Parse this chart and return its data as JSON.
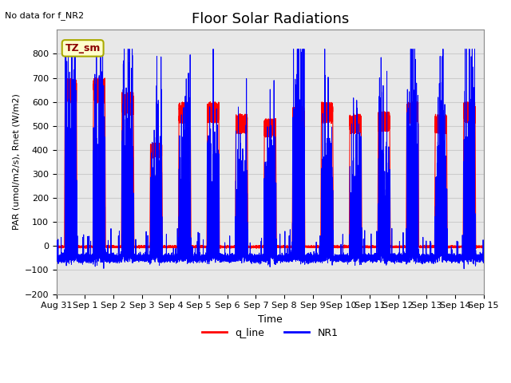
{
  "title": "Floor Solar Radiations",
  "title_fontsize": 13,
  "xlabel": "Time",
  "ylabel": "PAR (umol/m2/s), Rnet (W/m2)",
  "no_data_text": "No data for f_NR2",
  "legend_label_box": "TZ_sm",
  "legend_entries": [
    "q_line",
    "NR1"
  ],
  "legend_colors": [
    "red",
    "blue"
  ],
  "ylim": [
    -200,
    900
  ],
  "yticks": [
    -200,
    -100,
    0,
    100,
    200,
    300,
    400,
    500,
    600,
    700,
    800
  ],
  "xlim_start": 0,
  "xlim_end": 15.0,
  "xtick_labels": [
    "Aug 31",
    "Sep 1",
    "Sep 2",
    "Sep 3",
    "Sep 4",
    "Sep 5",
    "Sep 6",
    "Sep 7",
    "Sep 8",
    "Sep 9",
    "Sep 10",
    "Sep 11",
    "Sep 12",
    "Sep 13",
    "Sep 14",
    "Sep 15"
  ],
  "xtick_positions": [
    0,
    1,
    2,
    3,
    4,
    5,
    6,
    7,
    8,
    9,
    10,
    11,
    12,
    13,
    14,
    15
  ],
  "grid_color": "#cccccc",
  "bg_color": "#e8e8e8",
  "num_days": 15,
  "red_night": -5,
  "blue_night": -50,
  "red_peaks": [
    700,
    700,
    640,
    430,
    600,
    600,
    550,
    530,
    580,
    600,
    550,
    560,
    600,
    550,
    600
  ],
  "blue_peaks": [
    600,
    600,
    590,
    430,
    550,
    500,
    430,
    480,
    605,
    520,
    420,
    500,
    600,
    490,
    600
  ],
  "seed": 7
}
